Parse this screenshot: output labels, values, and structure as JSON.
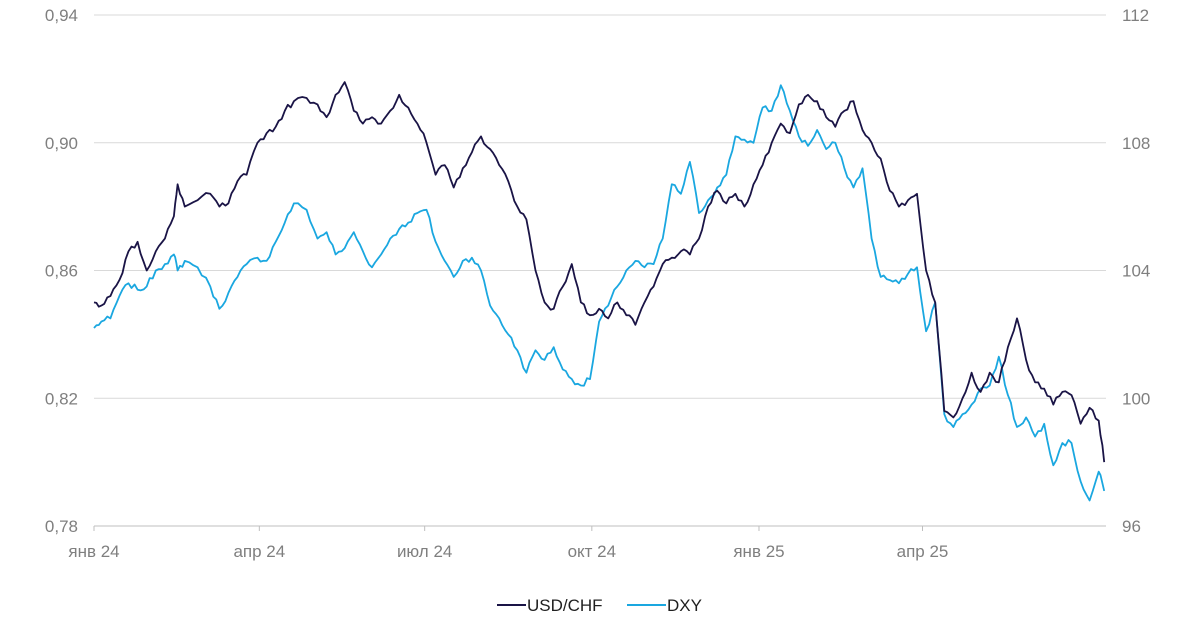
{
  "chart_data": {
    "type": "line",
    "title": "",
    "x_ticks": [
      "янв 24",
      "апр 24",
      "июл 24",
      "окт 24",
      "янв 25",
      "апр 25"
    ],
    "y_left": {
      "ticks": [
        "0,78",
        "0,82",
        "0,86",
        "0,90",
        "0,94"
      ],
      "min": 0.78,
      "max": 0.94
    },
    "y_right": {
      "ticks": [
        "96",
        "100",
        "104",
        "108",
        "112"
      ],
      "min": 96,
      "max": 112
    },
    "grid": true,
    "legend_position": "bottom",
    "series": [
      {
        "name": "USD/CHF",
        "axis": "left",
        "color": "#1a1446",
        "points": [
          [
            "2024-01-01",
            0.85
          ],
          [
            "2024-01-05",
            0.849
          ],
          [
            "2024-01-10",
            0.852
          ],
          [
            "2024-01-15",
            0.857
          ],
          [
            "2024-01-20",
            0.866
          ],
          [
            "2024-01-25",
            0.869
          ],
          [
            "2024-01-30",
            0.86
          ],
          [
            "2024-02-04",
            0.866
          ],
          [
            "2024-02-09",
            0.87
          ],
          [
            "2024-02-14",
            0.877
          ],
          [
            "2024-02-16",
            0.887
          ],
          [
            "2024-02-20",
            0.88
          ],
          [
            "2024-02-27",
            0.882
          ],
          [
            "2024-03-05",
            0.884
          ],
          [
            "2024-03-10",
            0.88
          ],
          [
            "2024-03-15",
            0.881
          ],
          [
            "2024-03-20",
            0.888
          ],
          [
            "2024-03-25",
            0.89
          ],
          [
            "2024-03-31",
            0.9
          ],
          [
            "2024-04-05",
            0.903
          ],
          [
            "2024-04-10",
            0.905
          ],
          [
            "2024-04-15",
            0.91
          ],
          [
            "2024-04-20",
            0.913
          ],
          [
            "2024-04-27",
            0.914
          ],
          [
            "2024-05-03",
            0.912
          ],
          [
            "2024-05-08",
            0.908
          ],
          [
            "2024-05-13",
            0.915
          ],
          [
            "2024-05-18",
            0.919
          ],
          [
            "2024-05-23",
            0.91
          ],
          [
            "2024-05-28",
            0.906
          ],
          [
            "2024-06-02",
            0.908
          ],
          [
            "2024-06-07",
            0.906
          ],
          [
            "2024-06-12",
            0.91
          ],
          [
            "2024-06-17",
            0.915
          ],
          [
            "2024-06-22",
            0.911
          ],
          [
            "2024-06-27",
            0.906
          ],
          [
            "2024-07-02",
            0.9
          ],
          [
            "2024-07-07",
            0.89
          ],
          [
            "2024-07-12",
            0.893
          ],
          [
            "2024-07-17",
            0.886
          ],
          [
            "2024-07-22",
            0.892
          ],
          [
            "2024-07-27",
            0.897
          ],
          [
            "2024-08-01",
            0.902
          ],
          [
            "2024-08-06",
            0.898
          ],
          [
            "2024-08-11",
            0.893
          ],
          [
            "2024-08-16",
            0.888
          ],
          [
            "2024-08-21",
            0.88
          ],
          [
            "2024-08-26",
            0.876
          ],
          [
            "2024-08-31",
            0.86
          ],
          [
            "2024-09-05",
            0.85
          ],
          [
            "2024-09-10",
            0.848
          ],
          [
            "2024-09-15",
            0.855
          ],
          [
            "2024-09-20",
            0.862
          ],
          [
            "2024-09-25",
            0.85
          ],
          [
            "2024-09-30",
            0.846
          ],
          [
            "2024-10-05",
            0.848
          ],
          [
            "2024-10-10",
            0.845
          ],
          [
            "2024-10-15",
            0.85
          ],
          [
            "2024-10-20",
            0.846
          ],
          [
            "2024-10-25",
            0.843
          ],
          [
            "2024-10-30",
            0.85
          ],
          [
            "2024-11-04",
            0.855
          ],
          [
            "2024-11-09",
            0.862
          ],
          [
            "2024-11-14",
            0.864
          ],
          [
            "2024-11-19",
            0.866
          ],
          [
            "2024-11-24",
            0.865
          ],
          [
            "2024-11-29",
            0.87
          ],
          [
            "2024-12-04",
            0.88
          ],
          [
            "2024-12-09",
            0.885
          ],
          [
            "2024-12-14",
            0.881
          ],
          [
            "2024-12-19",
            0.884
          ],
          [
            "2024-12-24",
            0.88
          ],
          [
            "2024-12-29",
            0.887
          ],
          [
            "2025-01-03",
            0.893
          ],
          [
            "2025-01-08",
            0.9
          ],
          [
            "2025-01-13",
            0.906
          ],
          [
            "2025-01-18",
            0.903
          ],
          [
            "2025-01-23",
            0.912
          ],
          [
            "2025-01-28",
            0.915
          ],
          [
            "2025-02-02",
            0.913
          ],
          [
            "2025-02-07",
            0.908
          ],
          [
            "2025-02-12",
            0.905
          ],
          [
            "2025-02-17",
            0.91
          ],
          [
            "2025-02-22",
            0.913
          ],
          [
            "2025-02-27",
            0.904
          ],
          [
            "2025-03-04",
            0.9
          ],
          [
            "2025-03-09",
            0.895
          ],
          [
            "2025-03-14",
            0.885
          ],
          [
            "2025-03-19",
            0.88
          ],
          [
            "2025-03-24",
            0.882
          ],
          [
            "2025-03-29",
            0.884
          ],
          [
            "2025-04-03",
            0.86
          ],
          [
            "2025-04-08",
            0.85
          ],
          [
            "2025-04-13",
            0.816
          ],
          [
            "2025-04-18",
            0.814
          ],
          [
            "2025-04-23",
            0.82
          ],
          [
            "2025-04-28",
            0.828
          ],
          [
            "2025-05-03",
            0.822
          ],
          [
            "2025-05-08",
            0.828
          ],
          [
            "2025-05-13",
            0.825
          ],
          [
            "2025-05-18",
            0.836
          ],
          [
            "2025-05-23",
            0.845
          ],
          [
            "2025-05-28",
            0.832
          ],
          [
            "2025-06-02",
            0.825
          ],
          [
            "2025-06-07",
            0.823
          ],
          [
            "2025-06-12",
            0.818
          ],
          [
            "2025-06-17",
            0.822
          ],
          [
            "2025-06-22",
            0.821
          ],
          [
            "2025-06-27",
            0.812
          ],
          [
            "2025-07-02",
            0.817
          ],
          [
            "2025-07-07",
            0.813
          ],
          [
            "2025-07-10",
            0.8
          ]
        ]
      },
      {
        "name": "DXY",
        "axis": "right",
        "color": "#1aa7e0",
        "points": [
          [
            "2024-01-01",
            102.2
          ],
          [
            "2024-01-05",
            102.4
          ],
          [
            "2024-01-10",
            102.5
          ],
          [
            "2024-01-15",
            103.2
          ],
          [
            "2024-01-20",
            103.6
          ],
          [
            "2024-01-25",
            103.4
          ],
          [
            "2024-01-30",
            103.5
          ],
          [
            "2024-02-04",
            104.0
          ],
          [
            "2024-02-09",
            104.2
          ],
          [
            "2024-02-14",
            104.5
          ],
          [
            "2024-02-16",
            104.0
          ],
          [
            "2024-02-20",
            104.3
          ],
          [
            "2024-02-27",
            104.1
          ],
          [
            "2024-03-05",
            103.5
          ],
          [
            "2024-03-10",
            102.8
          ],
          [
            "2024-03-15",
            103.3
          ],
          [
            "2024-03-20",
            103.8
          ],
          [
            "2024-03-25",
            104.2
          ],
          [
            "2024-03-31",
            104.4
          ],
          [
            "2024-04-05",
            104.3
          ],
          [
            "2024-04-10",
            104.9
          ],
          [
            "2024-04-15",
            105.5
          ],
          [
            "2024-04-20",
            106.1
          ],
          [
            "2024-04-27",
            105.9
          ],
          [
            "2024-05-03",
            105.0
          ],
          [
            "2024-05-08",
            105.2
          ],
          [
            "2024-05-13",
            104.5
          ],
          [
            "2024-05-18",
            104.7
          ],
          [
            "2024-05-23",
            105.2
          ],
          [
            "2024-05-28",
            104.6
          ],
          [
            "2024-06-02",
            104.1
          ],
          [
            "2024-06-07",
            104.5
          ],
          [
            "2024-06-12",
            105.0
          ],
          [
            "2024-06-17",
            105.3
          ],
          [
            "2024-06-22",
            105.5
          ],
          [
            "2024-06-27",
            105.8
          ],
          [
            "2024-07-02",
            105.9
          ],
          [
            "2024-07-07",
            104.9
          ],
          [
            "2024-07-12",
            104.3
          ],
          [
            "2024-07-17",
            103.8
          ],
          [
            "2024-07-22",
            104.3
          ],
          [
            "2024-07-27",
            104.4
          ],
          [
            "2024-08-01",
            104.0
          ],
          [
            "2024-08-06",
            102.9
          ],
          [
            "2024-08-11",
            102.5
          ],
          [
            "2024-08-16",
            102.0
          ],
          [
            "2024-08-21",
            101.5
          ],
          [
            "2024-08-26",
            100.8
          ],
          [
            "2024-08-31",
            101.5
          ],
          [
            "2024-09-05",
            101.2
          ],
          [
            "2024-09-10",
            101.6
          ],
          [
            "2024-09-15",
            100.9
          ],
          [
            "2024-09-20",
            100.6
          ],
          [
            "2024-09-25",
            100.4
          ],
          [
            "2024-09-30",
            100.6
          ],
          [
            "2024-10-05",
            102.4
          ],
          [
            "2024-10-10",
            102.9
          ],
          [
            "2024-10-15",
            103.5
          ],
          [
            "2024-10-20",
            104.0
          ],
          [
            "2024-10-25",
            104.3
          ],
          [
            "2024-10-30",
            104.1
          ],
          [
            "2024-11-04",
            104.2
          ],
          [
            "2024-11-09",
            105.0
          ],
          [
            "2024-11-14",
            106.7
          ],
          [
            "2024-11-19",
            106.4
          ],
          [
            "2024-11-24",
            107.4
          ],
          [
            "2024-11-29",
            105.8
          ],
          [
            "2024-12-04",
            106.2
          ],
          [
            "2024-12-09",
            106.6
          ],
          [
            "2024-12-14",
            107.0
          ],
          [
            "2024-12-19",
            108.2
          ],
          [
            "2024-12-24",
            108.1
          ],
          [
            "2024-12-29",
            108.0
          ],
          [
            "2025-01-03",
            109.1
          ],
          [
            "2025-01-08",
            109.0
          ],
          [
            "2025-01-13",
            109.8
          ],
          [
            "2025-01-18",
            109.0
          ],
          [
            "2025-01-23",
            108.2
          ],
          [
            "2025-01-28",
            107.9
          ],
          [
            "2025-02-02",
            108.4
          ],
          [
            "2025-02-07",
            107.8
          ],
          [
            "2025-02-12",
            108.0
          ],
          [
            "2025-02-17",
            107.2
          ],
          [
            "2025-02-22",
            106.6
          ],
          [
            "2025-02-27",
            107.2
          ],
          [
            "2025-03-04",
            105.0
          ],
          [
            "2025-03-09",
            103.8
          ],
          [
            "2025-03-14",
            103.7
          ],
          [
            "2025-03-19",
            103.6
          ],
          [
            "2025-03-24",
            103.9
          ],
          [
            "2025-03-29",
            104.1
          ],
          [
            "2025-04-03",
            102.1
          ],
          [
            "2025-04-08",
            103.0
          ],
          [
            "2025-04-13",
            99.5
          ],
          [
            "2025-04-18",
            99.1
          ],
          [
            "2025-04-23",
            99.5
          ],
          [
            "2025-04-28",
            99.8
          ],
          [
            "2025-05-03",
            100.3
          ],
          [
            "2025-05-08",
            100.4
          ],
          [
            "2025-05-13",
            101.3
          ],
          [
            "2025-05-18",
            100.1
          ],
          [
            "2025-05-23",
            99.1
          ],
          [
            "2025-05-28",
            99.4
          ],
          [
            "2025-06-02",
            98.8
          ],
          [
            "2025-06-07",
            99.2
          ],
          [
            "2025-06-12",
            97.9
          ],
          [
            "2025-06-17",
            98.6
          ],
          [
            "2025-06-22",
            98.6
          ],
          [
            "2025-06-27",
            97.4
          ],
          [
            "2025-07-02",
            96.8
          ],
          [
            "2025-07-07",
            97.7
          ],
          [
            "2025-07-10",
            97.1
          ]
        ]
      }
    ]
  }
}
